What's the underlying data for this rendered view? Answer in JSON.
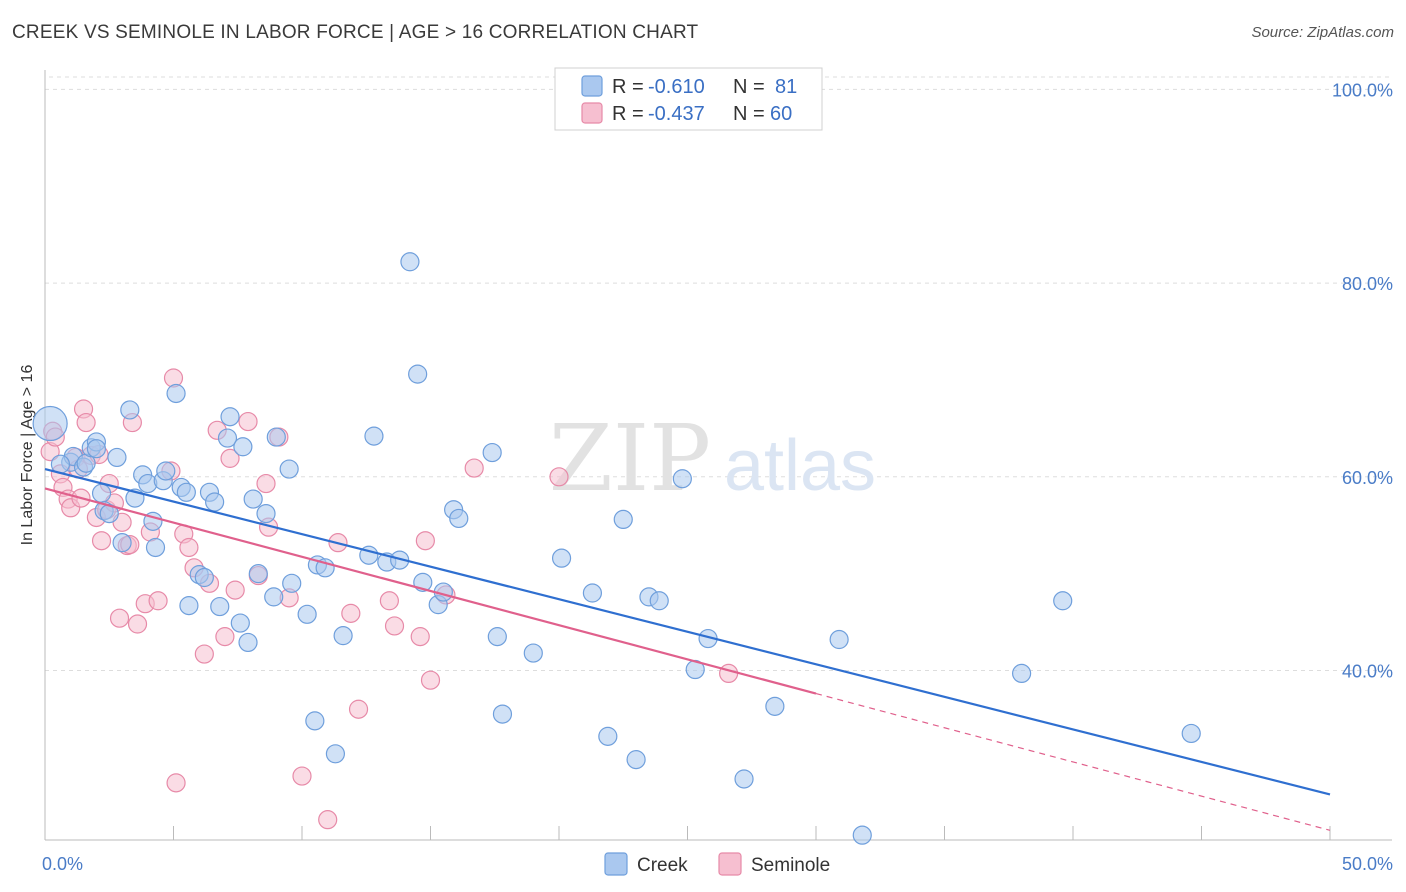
{
  "title": "CREEK VS SEMINOLE IN LABOR FORCE | AGE > 16 CORRELATION CHART",
  "source": "Source: ZipAtlas.com",
  "watermark": {
    "zip": "ZIP",
    "atlas": "atlas"
  },
  "colors": {
    "creek_fill": "#aac8ef",
    "creek_stroke": "#6f9fdc",
    "creek_line": "#2f6fd0",
    "seminole_fill": "#f6bfd0",
    "seminole_stroke": "#e78aa8",
    "seminole_line": "#e0608c",
    "tick_label": "#4a7cc7",
    "grid": "#dddddd"
  },
  "legend": {
    "items": [
      {
        "r_label": "R =",
        "r_value": "-0.610",
        "n_label": "N =",
        "n_value": "81"
      },
      {
        "r_label": "R =",
        "r_value": "-0.437",
        "n_label": "N =",
        "n_value": "60"
      }
    ]
  },
  "chart_data": {
    "type": "scatter",
    "title": "CREEK VS SEMINOLE IN LABOR FORCE | AGE > 16 CORRELATION CHART",
    "xlabel": "",
    "ylabel": "In Labor Force | Age > 16",
    "xlim": [
      0,
      50
    ],
    "ylim": [
      22.5,
      102
    ],
    "x_tick_labels": [
      {
        "value": 0,
        "label": "0.0%"
      },
      {
        "value": 50,
        "label": "50.0%"
      }
    ],
    "y_tick_labels": [
      {
        "value": 100,
        "label": "100.0%"
      },
      {
        "value": 80,
        "label": "80.0%"
      },
      {
        "value": 60,
        "label": "60.0%"
      },
      {
        "value": 40,
        "label": "40.0%"
      }
    ],
    "grid": true,
    "legend_position": "top-center",
    "series": [
      {
        "name": "Creek",
        "r": -0.61,
        "n": 81,
        "trend": {
          "x0": 0,
          "y0": 60.8,
          "x1": 50,
          "y1": 27.2,
          "solid_until": 50
        },
        "points": [
          [
            0.2,
            65.5
          ],
          [
            1.0,
            61.5
          ],
          [
            1.1,
            62.1
          ],
          [
            1.5,
            61.0
          ],
          [
            1.6,
            61.4
          ],
          [
            1.8,
            63.0
          ],
          [
            2.0,
            63.6
          ],
          [
            2.0,
            62.9
          ],
          [
            2.2,
            58.3
          ],
          [
            2.3,
            56.5
          ],
          [
            2.5,
            56.2
          ],
          [
            2.8,
            62.0
          ],
          [
            3.0,
            53.2
          ],
          [
            3.3,
            66.9
          ],
          [
            3.5,
            57.8
          ],
          [
            3.8,
            60.2
          ],
          [
            4.0,
            59.3
          ],
          [
            4.2,
            55.4
          ],
          [
            4.3,
            52.7
          ],
          [
            4.6,
            59.6
          ],
          [
            4.7,
            60.6
          ],
          [
            5.1,
            68.6
          ],
          [
            5.3,
            58.9
          ],
          [
            5.5,
            58.4
          ],
          [
            5.6,
            46.7
          ],
          [
            6.0,
            49.9
          ],
          [
            6.2,
            49.6
          ],
          [
            6.4,
            58.4
          ],
          [
            6.6,
            57.4
          ],
          [
            6.8,
            46.6
          ],
          [
            7.1,
            64.0
          ],
          [
            7.2,
            66.2
          ],
          [
            7.6,
            44.9
          ],
          [
            7.7,
            63.1
          ],
          [
            7.9,
            42.9
          ],
          [
            8.1,
            57.7
          ],
          [
            8.3,
            50.0
          ],
          [
            8.6,
            56.2
          ],
          [
            8.9,
            47.6
          ],
          [
            9.0,
            64.1
          ],
          [
            9.5,
            60.8
          ],
          [
            9.6,
            49.0
          ],
          [
            10.2,
            45.8
          ],
          [
            10.5,
            34.8
          ],
          [
            10.6,
            50.9
          ],
          [
            10.9,
            50.6
          ],
          [
            11.3,
            31.4
          ],
          [
            11.6,
            43.6
          ],
          [
            12.6,
            51.9
          ],
          [
            12.8,
            64.2
          ],
          [
            13.3,
            51.2
          ],
          [
            13.8,
            51.4
          ],
          [
            14.2,
            82.2
          ],
          [
            14.5,
            70.6
          ],
          [
            14.7,
            49.1
          ],
          [
            15.3,
            46.8
          ],
          [
            15.5,
            48.1
          ],
          [
            15.9,
            56.6
          ],
          [
            16.1,
            55.7
          ],
          [
            17.4,
            62.5
          ],
          [
            17.6,
            43.5
          ],
          [
            17.8,
            35.5
          ],
          [
            19.0,
            41.8
          ],
          [
            20.1,
            51.6
          ],
          [
            21.3,
            48.0
          ],
          [
            21.9,
            33.2
          ],
          [
            22.5,
            55.6
          ],
          [
            23.0,
            30.8
          ],
          [
            23.5,
            47.6
          ],
          [
            23.9,
            47.2
          ],
          [
            24.8,
            59.8
          ],
          [
            25.3,
            40.1
          ],
          [
            25.8,
            43.3
          ],
          [
            27.2,
            28.8
          ],
          [
            28.4,
            36.3
          ],
          [
            30.9,
            43.2
          ],
          [
            31.8,
            23.0
          ],
          [
            38.0,
            39.7
          ],
          [
            39.6,
            47.2
          ],
          [
            44.6,
            33.5
          ],
          [
            0.6,
            61.3
          ]
        ]
      },
      {
        "name": "Seminole",
        "r": -0.437,
        "n": 60,
        "trend": {
          "x0": 0,
          "y0": 58.8,
          "x1": 50,
          "y1": 23.5,
          "solid_until": 30
        },
        "points": [
          [
            0.2,
            62.6
          ],
          [
            0.3,
            64.7
          ],
          [
            0.4,
            64.1
          ],
          [
            0.6,
            60.3
          ],
          [
            0.7,
            58.9
          ],
          [
            0.9,
            57.7
          ],
          [
            1.0,
            56.8
          ],
          [
            1.2,
            62.0
          ],
          [
            1.4,
            57.8
          ],
          [
            1.5,
            67.0
          ],
          [
            1.6,
            65.6
          ],
          [
            1.8,
            62.2
          ],
          [
            2.0,
            55.8
          ],
          [
            2.2,
            53.4
          ],
          [
            2.4,
            56.6
          ],
          [
            2.5,
            59.3
          ],
          [
            2.7,
            57.3
          ],
          [
            2.9,
            45.4
          ],
          [
            3.0,
            55.3
          ],
          [
            3.2,
            52.9
          ],
          [
            3.4,
            65.6
          ],
          [
            3.6,
            44.8
          ],
          [
            3.9,
            46.9
          ],
          [
            4.1,
            54.3
          ],
          [
            4.4,
            47.2
          ],
          [
            4.9,
            60.6
          ],
          [
            5.0,
            70.2
          ],
          [
            5.1,
            28.4
          ],
          [
            5.4,
            54.1
          ],
          [
            5.6,
            52.7
          ],
          [
            5.8,
            50.6
          ],
          [
            6.2,
            41.7
          ],
          [
            6.7,
            64.8
          ],
          [
            7.0,
            43.5
          ],
          [
            7.2,
            61.9
          ],
          [
            7.4,
            48.3
          ],
          [
            7.9,
            65.7
          ],
          [
            8.3,
            49.8
          ],
          [
            8.6,
            59.3
          ],
          [
            8.7,
            54.8
          ],
          [
            9.1,
            64.1
          ],
          [
            9.5,
            47.5
          ],
          [
            10.0,
            29.1
          ],
          [
            11.0,
            24.6
          ],
          [
            11.4,
            53.2
          ],
          [
            11.9,
            45.9
          ],
          [
            13.4,
            47.2
          ],
          [
            13.6,
            44.6
          ],
          [
            14.6,
            43.5
          ],
          [
            14.8,
            53.4
          ],
          [
            15.0,
            39.0
          ],
          [
            15.6,
            47.8
          ],
          [
            16.7,
            60.9
          ],
          [
            20.0,
            60.0
          ],
          [
            26.6,
            39.7
          ],
          [
            1.3,
            60.8
          ],
          [
            2.1,
            62.3
          ],
          [
            3.3,
            53.0
          ],
          [
            6.4,
            49.0
          ],
          [
            12.2,
            36.0
          ]
        ]
      }
    ]
  }
}
